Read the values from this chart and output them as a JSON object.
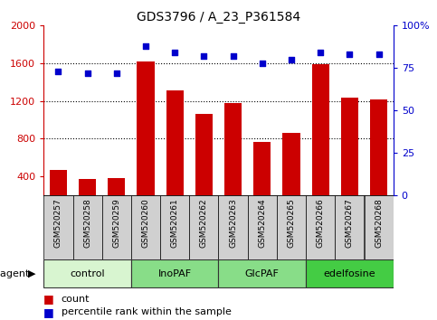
{
  "title": "GDS3796 / A_23_P361584",
  "samples": [
    "GSM520257",
    "GSM520258",
    "GSM520259",
    "GSM520260",
    "GSM520261",
    "GSM520262",
    "GSM520263",
    "GSM520264",
    "GSM520265",
    "GSM520266",
    "GSM520267",
    "GSM520268"
  ],
  "counts": [
    470,
    375,
    380,
    1620,
    1310,
    1060,
    1175,
    770,
    865,
    1590,
    1235,
    1220
  ],
  "percentiles": [
    73,
    72,
    72,
    88,
    84,
    82,
    82,
    78,
    80,
    84,
    83,
    83
  ],
  "ylim_left": [
    200,
    2000
  ],
  "ylim_right": [
    0,
    100
  ],
  "yticks_left": [
    400,
    800,
    1200,
    1600,
    2000
  ],
  "yticks_right": [
    0,
    25,
    50,
    75,
    100
  ],
  "right_tick_labels": [
    "0",
    "25",
    "50",
    "75",
    "100%"
  ],
  "groups": [
    {
      "label": "control",
      "start": 0,
      "end": 3,
      "color": "#d8f5d0"
    },
    {
      "label": "InoPAF",
      "start": 3,
      "end": 6,
      "color": "#88dd88"
    },
    {
      "label": "GlcPAF",
      "start": 6,
      "end": 9,
      "color": "#88dd88"
    },
    {
      "label": "edelfosine",
      "start": 9,
      "end": 12,
      "color": "#44cc44"
    }
  ],
  "bar_color": "#cc0000",
  "dot_color": "#0000cc",
  "left_axis_color": "#cc0000",
  "right_axis_color": "#0000cc",
  "sample_cell_color": "#d0d0d0",
  "title_color": "#000000",
  "agent_label": "agent",
  "legend_count": "count",
  "legend_percentile": "percentile rank within the sample",
  "gridlines": [
    800,
    1200,
    1600
  ]
}
